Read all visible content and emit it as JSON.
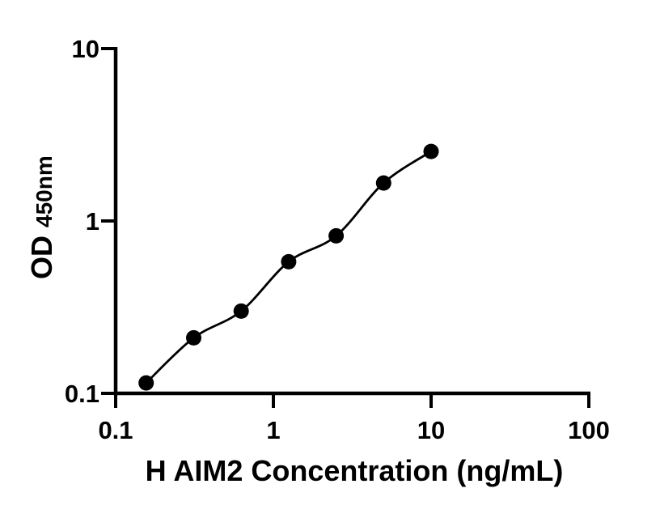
{
  "figure": {
    "background_color": "#ffffff",
    "ink_color": "#000000"
  },
  "chart_data": {
    "type": "scatter",
    "subtype": "line-through-points",
    "title": "",
    "xlabel": "H AIM2 Concentration (ng/mL)",
    "ylabel_main": "OD",
    "ylabel_sub": "450nm",
    "x_scale": "log",
    "y_scale": "log",
    "xlim": [
      0.1,
      100
    ],
    "ylim": [
      0.1,
      10
    ],
    "grid": false,
    "legend": false,
    "x_ticks": [
      {
        "value": 0.1,
        "label": "0.1"
      },
      {
        "value": 1,
        "label": "1"
      },
      {
        "value": 10,
        "label": "10"
      },
      {
        "value": 100,
        "label": "100"
      }
    ],
    "y_ticks": [
      {
        "value": 0.1,
        "label": "0.1"
      },
      {
        "value": 1,
        "label": "1"
      },
      {
        "value": 10,
        "label": "10"
      }
    ],
    "series": [
      {
        "x": [
          0.156,
          0.3125,
          0.625,
          1.25,
          2.5,
          5,
          10
        ],
        "y": [
          0.115,
          0.21,
          0.3,
          0.58,
          0.82,
          1.66,
          2.53
        ],
        "marker": "filled-circle",
        "marker_color": "#000000",
        "line_style": "smooth-fit",
        "line_color": "#000000"
      }
    ]
  }
}
